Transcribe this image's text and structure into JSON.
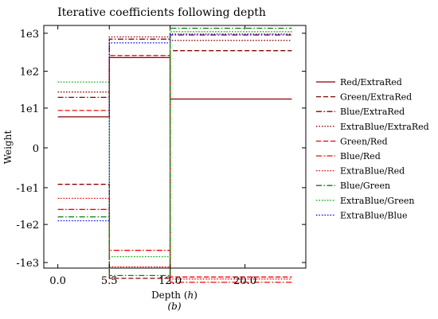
{
  "chart_data": {
    "type": "line",
    "title": "Iterative coefficients following depth",
    "xlabel": "Depth (h)",
    "xlabel_main": "Depth (",
    "xlabel_var": "h",
    "xlabel_close": ")",
    "sublabel": "(b)",
    "ylabel": "Weight",
    "y_scale": "symlog",
    "x_ticks": [
      0,
      5.5,
      12,
      20
    ],
    "x_tick_labels": [
      "0.0",
      "5.5",
      "12.0",
      "20.0"
    ],
    "xlim": [
      -1.5,
      26.5
    ],
    "y_ticks": [
      1000,
      100,
      10,
      0,
      -10,
      -100,
      -1000
    ],
    "y_tick_labels": [
      "1e3",
      "1e2",
      "1e1",
      "0",
      "-1e1",
      "-1e2",
      "-1e3"
    ],
    "ylim": [
      -1400,
      1600
    ],
    "grid": false,
    "legend_position": "right-outside",
    "segments_x": [
      0,
      5.5,
      12,
      25
    ],
    "series": [
      {
        "name": "Red/ExtraRed",
        "color": "#8b0000",
        "dash": "solid",
        "values": [
          5.5,
          230,
          18
        ]
      },
      {
        "name": "Green/ExtraRed",
        "color": "#8b0000",
        "dash": "dashed",
        "values": [
          -8,
          -2600,
          350
        ]
      },
      {
        "name": "Blue/ExtraRed",
        "color": "#8b0000",
        "dash": "dashdot",
        "values": [
          20,
          700,
          900
        ]
      },
      {
        "name": "ExtraBlue/ExtraRed",
        "color": "#8b0000",
        "dash": "dotted",
        "values": [
          28,
          800,
          650
        ]
      },
      {
        "name": "Green/Red",
        "color": "#ff0000",
        "dash": "dashed",
        "values": [
          8.5,
          260,
          -2400
        ]
      },
      {
        "name": "Blue/Red",
        "color": "#ff0000",
        "dash": "dashdot",
        "values": [
          -40,
          -480,
          -3300
        ]
      },
      {
        "name": "ExtraBlue/Red",
        "color": "#ff0000",
        "dash": "dotted",
        "values": [
          -20,
          -1300,
          -2700
        ]
      },
      {
        "name": "Blue/Green",
        "color": "#008000",
        "dash": "dashdot",
        "values": [
          -63,
          -2200,
          1350
        ]
      },
      {
        "name": "ExtraBlue/Green",
        "color": "#00aa00",
        "dash": "dotted",
        "values": [
          52,
          -700,
          1100
        ]
      },
      {
        "name": "ExtraBlue/Blue",
        "color": "#0000ff",
        "dash": "dotted",
        "values": [
          -80,
          560,
          950
        ]
      }
    ]
  }
}
